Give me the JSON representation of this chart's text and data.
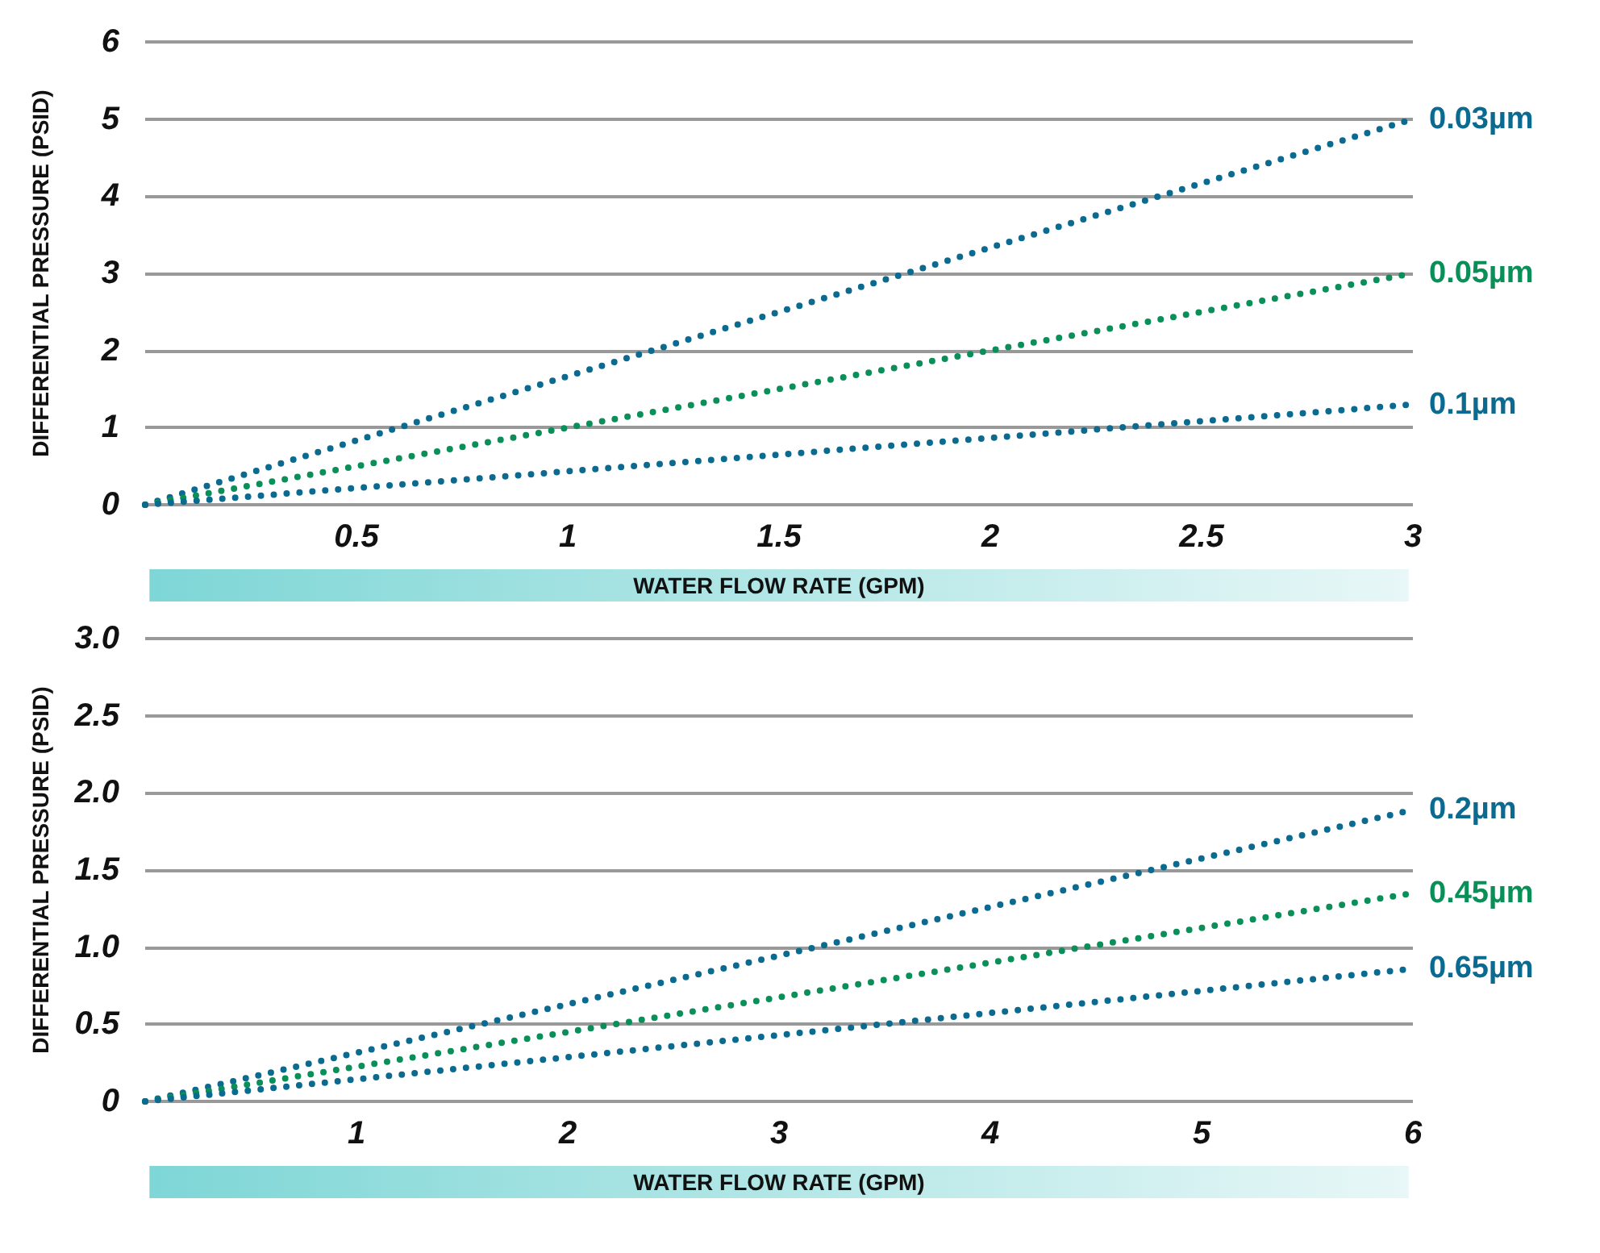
{
  "chart_data": [
    {
      "type": "line",
      "xlabel": "WATER FLOW RATE (GPM)",
      "ylabel": "DIFFERENTIAL PRESSURE (PSID)",
      "xlim": [
        0,
        3
      ],
      "xticks": [
        0.5,
        1,
        1.5,
        2,
        2.5,
        3
      ],
      "ylim": [
        0,
        6
      ],
      "yticks": [
        0,
        1,
        2,
        3,
        4,
        5,
        6
      ],
      "grid": "y",
      "legend": false,
      "line_style": "dotted",
      "marker": "none",
      "x": [
        0,
        3
      ],
      "series": [
        {
          "name": "0.03µm",
          "color": "#0b6a8f",
          "values": [
            0,
            5
          ]
        },
        {
          "name": "0.05µm",
          "color": "#0a8f58",
          "values": [
            0,
            3
          ]
        },
        {
          "name": "0.1µm",
          "color": "#0b6a8f",
          "values": [
            0,
            1.3
          ]
        }
      ]
    },
    {
      "type": "line",
      "xlabel": "WATER FLOW RATE (GPM)",
      "ylabel": "DIFFERENTIAL PRESSURE (PSID)",
      "xlim": [
        0,
        6
      ],
      "xticks": [
        1,
        2,
        3,
        4,
        5,
        6
      ],
      "ylim": [
        0,
        3
      ],
      "yticks": [
        {
          "value": 0,
          "label": "0"
        },
        {
          "value": 0.5,
          "label": "0.5"
        },
        {
          "value": 1,
          "label": "1.0"
        },
        {
          "value": 1.5,
          "label": "1.5"
        },
        {
          "value": 2,
          "label": "2.0"
        },
        {
          "value": 2.5,
          "label": "2.5"
        },
        {
          "value": 3,
          "label": "3.0"
        }
      ],
      "grid": "y",
      "legend": false,
      "line_style": "dotted",
      "marker": "none",
      "x": [
        0,
        6
      ],
      "series": [
        {
          "name": "0.2µm",
          "color": "#0b6a8f",
          "values": [
            0,
            1.89
          ]
        },
        {
          "name": "0.45µm",
          "color": "#0a8f58",
          "values": [
            0,
            1.35
          ]
        },
        {
          "name": "0.65µm",
          "color": "#0b6a8f",
          "values": [
            0,
            0.86
          ]
        }
      ]
    }
  ]
}
